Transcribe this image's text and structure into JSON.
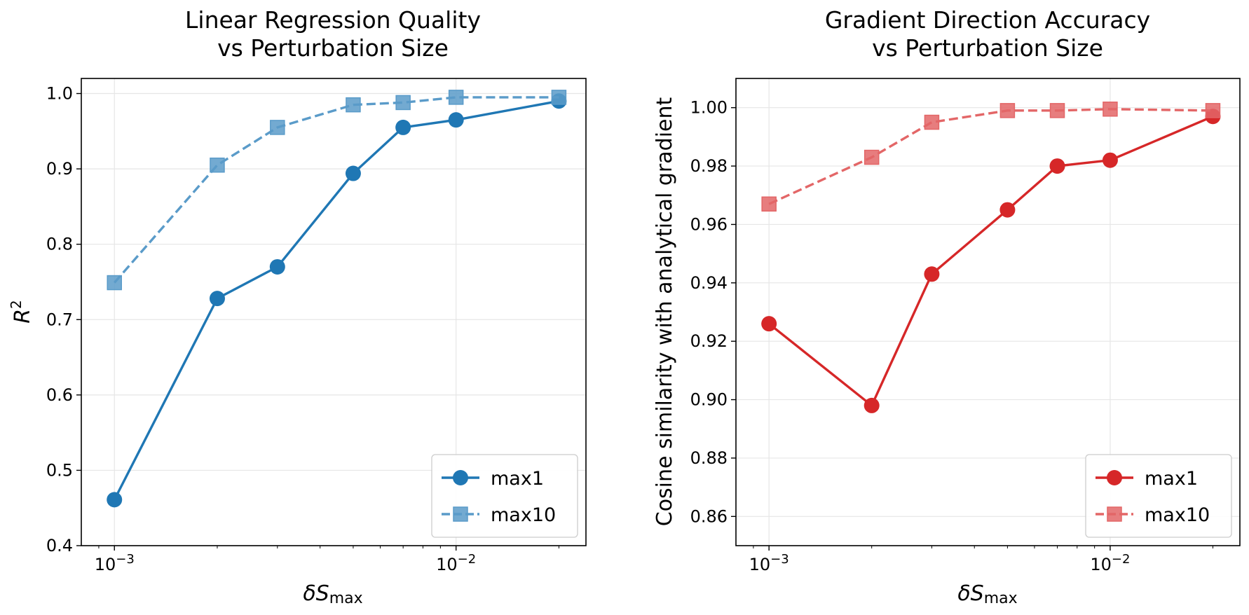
{
  "chart_data": [
    {
      "type": "line",
      "title": [
        "Linear Regression Quality",
        "vs Perturbation Size"
      ],
      "xlabel": {
        "main": "δS",
        "sub": "max"
      },
      "ylabel": {
        "main": "R",
        "sup": "2"
      },
      "xscale": "log",
      "xlim": [
        0.0008,
        0.024
      ],
      "ylim": [
        0.4,
        1.02
      ],
      "xticks": [
        {
          "value": 0.001,
          "base": "10",
          "exp": "−3"
        },
        {
          "value": 0.01,
          "base": "10",
          "exp": "−2"
        }
      ],
      "yticks": [
        0.4,
        0.5,
        0.6,
        0.7,
        0.8,
        0.9,
        1.0
      ],
      "ytick_labels": [
        "0.4",
        "0.5",
        "0.6",
        "0.7",
        "0.8",
        "0.9",
        "1.0"
      ],
      "x": [
        0.001,
        0.002,
        0.003,
        0.005,
        0.007,
        0.01,
        0.02
      ],
      "series": [
        {
          "name": "max1",
          "values": [
            0.461,
            0.728,
            0.77,
            0.894,
            0.955,
            0.965,
            0.99
          ],
          "color": "#1f77b4",
          "marker": "circle",
          "dashed": false
        },
        {
          "name": "max10",
          "values": [
            0.749,
            0.905,
            0.955,
            0.985,
            0.988,
            0.995,
            0.995
          ],
          "color": "#5a9bc9",
          "marker": "square",
          "dashed": true
        }
      ],
      "legend": "lower-right",
      "grid": true
    },
    {
      "type": "line",
      "title": [
        "Gradient Direction Accuracy",
        "vs Perturbation Size"
      ],
      "xlabel": {
        "main": "δS",
        "sub": "max"
      },
      "ylabel": {
        "main": "Cosine similarity with analytical gradient"
      },
      "xscale": "log",
      "xlim": [
        0.0008,
        0.024
      ],
      "ylim": [
        0.85,
        1.01
      ],
      "xticks": [
        {
          "value": 0.001,
          "base": "10",
          "exp": "−3"
        },
        {
          "value": 0.01,
          "base": "10",
          "exp": "−2"
        }
      ],
      "yticks": [
        0.86,
        0.88,
        0.9,
        0.92,
        0.94,
        0.96,
        0.98,
        1.0
      ],
      "ytick_labels": [
        "0.86",
        "0.88",
        "0.90",
        "0.92",
        "0.94",
        "0.96",
        "0.98",
        "1.00"
      ],
      "x": [
        0.001,
        0.002,
        0.003,
        0.005,
        0.007,
        0.01,
        0.02
      ],
      "series": [
        {
          "name": "max1",
          "values": [
            0.926,
            0.898,
            0.943,
            0.965,
            0.98,
            0.982,
            0.997
          ],
          "color": "#d62728",
          "marker": "circle",
          "dashed": false
        },
        {
          "name": "max10",
          "values": [
            0.967,
            0.983,
            0.995,
            0.999,
            0.999,
            0.9995,
            0.999
          ],
          "color": "#e36667",
          "marker": "square",
          "dashed": true
        }
      ],
      "legend": "lower-right",
      "grid": true
    }
  ]
}
